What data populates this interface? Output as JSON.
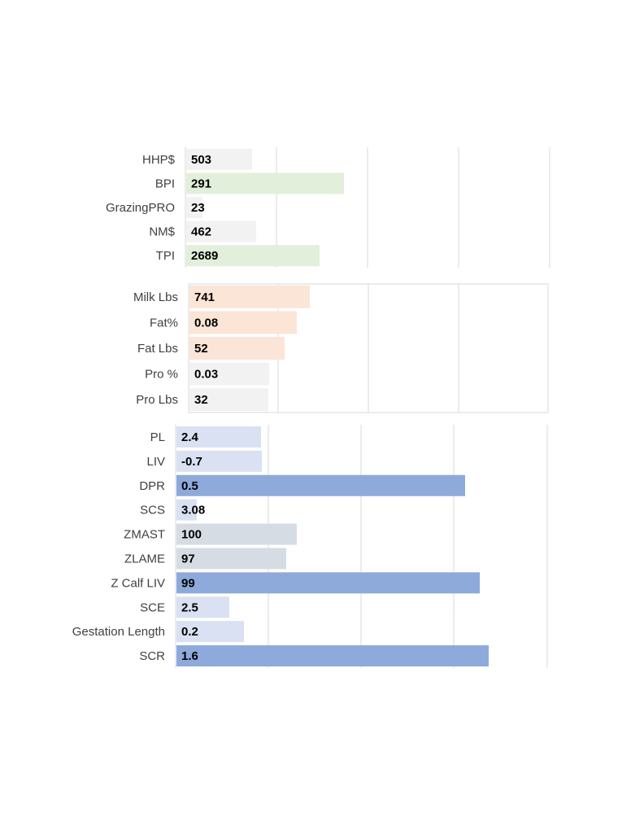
{
  "chart_data": [
    {
      "type": "bar",
      "orientation": "horizontal",
      "categories": [
        "HHP$",
        "BPI",
        "GrazingPRO",
        "NM$",
        "TPI"
      ],
      "values": [
        503,
        291,
        23,
        462,
        2689
      ],
      "value_labels": [
        "503",
        "291",
        "23",
        "462",
        "2689"
      ],
      "bar_colors": [
        "#f2f2f2",
        "#e2efda",
        "#f2f2f2",
        "#f2f2f2",
        "#e2efda"
      ],
      "grid": true,
      "frame": false
    },
    {
      "type": "bar",
      "orientation": "horizontal",
      "categories": [
        "Milk Lbs",
        "Fat%",
        "Fat Lbs",
        "Pro %",
        "Pro Lbs"
      ],
      "values": [
        741,
        0.08,
        52,
        0.03,
        32
      ],
      "value_labels": [
        "741",
        "0.08",
        "52",
        "0.03",
        "32"
      ],
      "bar_colors": [
        "#fbe5d6",
        "#fbe5d6",
        "#fbe5d6",
        "#f2f2f2",
        "#f2f2f2"
      ],
      "grid": true,
      "frame": true
    },
    {
      "type": "bar",
      "orientation": "horizontal",
      "categories": [
        "PL",
        "LIV",
        "DPR",
        "SCS",
        "ZMAST",
        "ZLAME",
        "Z Calf LIV",
        "SCE",
        "Gestation Length",
        "SCR"
      ],
      "values": [
        2.4,
        -0.7,
        0.5,
        3.08,
        100,
        97,
        99,
        2.5,
        0.2,
        1.6
      ],
      "value_labels": [
        "2.4",
        "-0.7",
        "0.5",
        "3.08",
        "100",
        "97",
        "99",
        "2.5",
        "0.2",
        "1.6"
      ],
      "bar_colors": [
        "#d9e1f2",
        "#d9e1f2",
        "#8eaadb",
        "#d9e1f2",
        "#d6dce4",
        "#d6dce4",
        "#8eaadb",
        "#d9e1f2",
        "#d9e1f2",
        "#8eaadb"
      ],
      "grid": true,
      "frame": false
    }
  ]
}
